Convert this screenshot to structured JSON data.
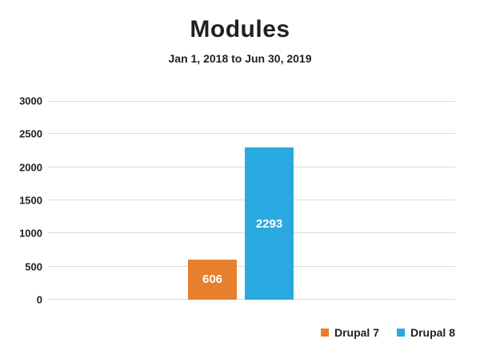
{
  "page": {
    "background": "#ffffff",
    "text_color": "#231f20"
  },
  "chart_data": {
    "type": "bar",
    "title": "Modules",
    "subtitle": "Jan 1, 2018 to Jun 30, 2019",
    "categories": [
      "Drupal 7",
      "Drupal 8"
    ],
    "values": [
      606,
      2293
    ],
    "value_labels": [
      "606",
      "2293"
    ],
    "series_colors": [
      "#e87f2e",
      "#29a9e0"
    ],
    "ylim": [
      0,
      3000
    ],
    "ytick_values": [
      0,
      500,
      1000,
      1500,
      2000,
      2500,
      3000
    ],
    "ytick_labels": [
      "0",
      "500",
      "1000",
      "1500",
      "2000",
      "2500",
      "3000"
    ],
    "xlabel": "",
    "ylabel": "",
    "grid": true,
    "gridline_color": "#dbdbdb",
    "value_label_position": "inside-middle",
    "legend": {
      "position": "bottom-right",
      "entries": [
        {
          "label": "Drupal 7",
          "color": "#e87f2e"
        },
        {
          "label": "Drupal 8",
          "color": "#29a9e0"
        }
      ]
    }
  }
}
